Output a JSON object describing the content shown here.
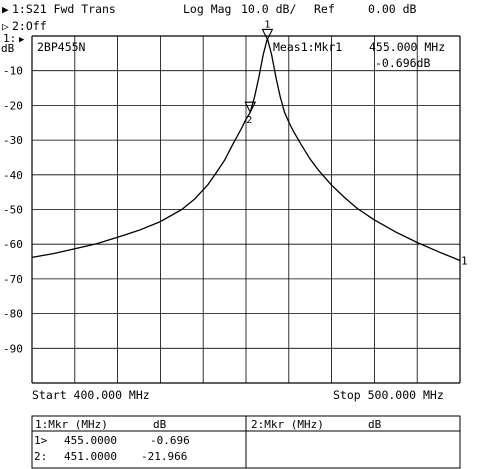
{
  "header": {
    "ch1_arrow": "▶",
    "ch1_label": "1:S21 Fwd Trans",
    "format": "Log Mag",
    "scale": "10.0 dB/",
    "ref_label": "Ref",
    "ref_value": "0.00 dB",
    "ch2_arrow": "▷",
    "ch2_label": "2:Off"
  },
  "ref_indicator": {
    "number": "1:",
    "arrow": "▶",
    "unit": "dB"
  },
  "trace_title": "2BP455N",
  "meas": {
    "label": "Meas1:Mkr1",
    "freq": "455.000 MHz",
    "value": "-0.696dB"
  },
  "stimulus": {
    "start_label": "Start 400.000 MHz",
    "stop_label": "Stop 500.000 MHz"
  },
  "trace_end_label": "1",
  "colors": {
    "trace": "#000000",
    "grid": "#000000",
    "background": "#ffffff"
  },
  "chart_data": {
    "type": "line",
    "title": "2BP455N",
    "xlabel": "",
    "ylabel": "dB",
    "xlim": [
      400,
      500
    ],
    "ylim": [
      -100,
      0
    ],
    "grid": true,
    "ytick_labels": [
      "-10",
      "-20",
      "-30",
      "-40",
      "-50",
      "-60",
      "-70",
      "-80",
      "-90"
    ],
    "x": [
      400,
      405,
      410,
      415,
      420,
      425,
      430,
      435,
      438,
      441,
      443,
      445,
      447,
      449,
      450,
      451,
      452,
      453,
      454,
      455,
      456,
      457,
      458,
      459,
      460,
      461,
      463,
      465,
      467,
      470,
      473,
      476,
      480,
      485,
      490,
      495,
      500
    ],
    "series": [
      {
        "values": [
          -63.8,
          -62.7,
          -61.3,
          -59.9,
          -58.0,
          -56.0,
          -53.5,
          -50.0,
          -47.0,
          -43.0,
          -39.5,
          -35.8,
          -31.0,
          -26.5,
          -24.0,
          -21.966,
          -17.5,
          -12.0,
          -5.5,
          -0.696,
          -5.5,
          -12.0,
          -17.5,
          -22.0,
          -24.8,
          -27.3,
          -31.5,
          -35.5,
          -38.8,
          -43.0,
          -46.5,
          -49.7,
          -53.0,
          -56.5,
          -59.5,
          -62.2,
          -64.7
        ]
      }
    ],
    "markers": [
      {
        "number": "1",
        "x": 455.0,
        "y": -0.696,
        "style": "active-below"
      },
      {
        "number": "2",
        "x": 451.0,
        "y": -21.966,
        "style": "inactive-below"
      }
    ]
  },
  "marker_table": {
    "col1_header": "1:Mkr (MHz)",
    "col1_unit": "dB",
    "col2_header": "2:Mkr (MHz)",
    "col2_unit": "dB",
    "rows": [
      {
        "id": "1>",
        "freq": "455.0000",
        "value": "-0.696"
      },
      {
        "id": "2:",
        "freq": "451.0000",
        "value": "-21.966"
      }
    ]
  }
}
